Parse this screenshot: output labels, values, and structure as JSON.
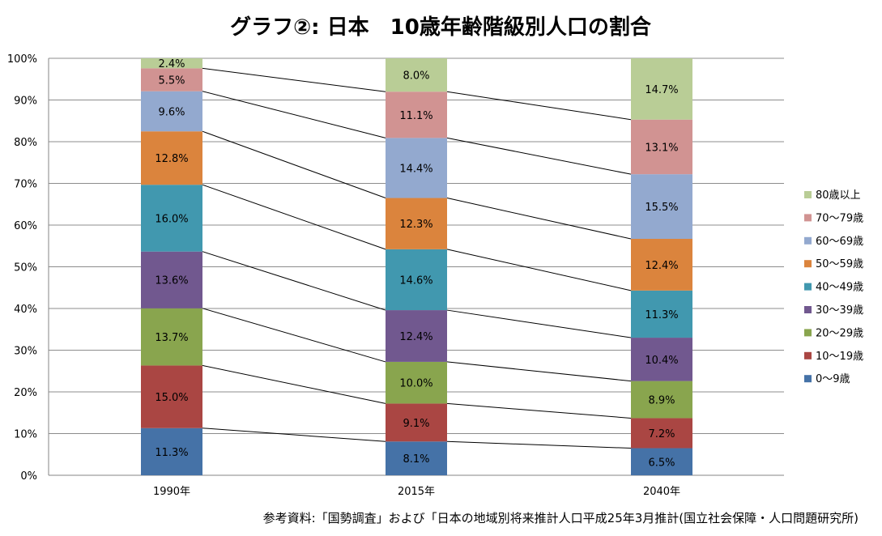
{
  "chart_data": {
    "type": "bar",
    "stacked": true,
    "percent": true,
    "title": "グラフ②: 日本　10歳年齢階級別人口の割合",
    "source": "参考資料:「国勢調査」および「日本の地域別将来推計人口平成25年3月推計(国立社会保障・人口問題研究所)",
    "categories": [
      "1990年",
      "2015年",
      "2040年"
    ],
    "ylim": [
      0,
      100
    ],
    "yticks": [
      "0%",
      "10%",
      "20%",
      "30%",
      "40%",
      "50%",
      "60%",
      "70%",
      "80%",
      "90%",
      "100%"
    ],
    "grid": true,
    "legend": "right",
    "series": [
      {
        "name": "0～9歳",
        "color": "#4572a7",
        "values": [
          11.3,
          8.1,
          6.5
        ],
        "labels": [
          "11.3%",
          "8.1%",
          "6.5%"
        ]
      },
      {
        "name": "10～19歳",
        "color": "#aa4643",
        "values": [
          15.0,
          9.1,
          7.2
        ],
        "labels": [
          "15.0%",
          "9.1%",
          "7.2%"
        ]
      },
      {
        "name": "20～29歳",
        "color": "#89a54e",
        "values": [
          13.7,
          10.0,
          8.9
        ],
        "labels": [
          "13.7%",
          "10.0%",
          "8.9%"
        ]
      },
      {
        "name": "30～39歳",
        "color": "#71588f",
        "values": [
          13.6,
          12.4,
          10.4
        ],
        "labels": [
          "13.6%",
          "12.4%",
          "10.4%"
        ]
      },
      {
        "name": "40～49歳",
        "color": "#4198af",
        "values": [
          16.0,
          14.6,
          11.3
        ],
        "labels": [
          "16.0%",
          "14.6%",
          "11.3%"
        ]
      },
      {
        "name": "50～59歳",
        "color": "#db843d",
        "values": [
          12.8,
          12.3,
          12.4
        ],
        "labels": [
          "12.8%",
          "12.3%",
          "12.4%"
        ]
      },
      {
        "name": "60～69歳",
        "color": "#93a9cf",
        "values": [
          9.6,
          14.4,
          15.5
        ],
        "labels": [
          "9.6%",
          "14.4%",
          "15.5%"
        ]
      },
      {
        "name": "70～79歳",
        "color": "#d19392",
        "values": [
          5.5,
          11.1,
          13.1
        ],
        "labels": [
          "5.5%",
          "11.1%",
          "13.1%"
        ]
      },
      {
        "name": "80歳以上",
        "color": "#b9cd96",
        "values": [
          2.4,
          8.0,
          14.7
        ],
        "labels": [
          "2.4%",
          "8.0%",
          "14.7%"
        ]
      }
    ]
  }
}
